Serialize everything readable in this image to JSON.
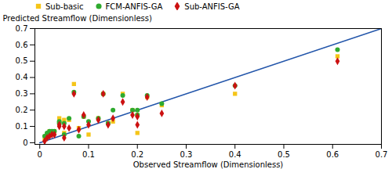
{
  "chart_data": {
    "type": "scatter",
    "xlabel": "Observed Streamflow (Dimensionless)",
    "ylabel": "Predicted Streamflow (Dimensionless)",
    "xlim": [
      -0.01,
      0.7
    ],
    "ylim": [
      -0.01,
      0.7
    ],
    "xticks": [
      0,
      0.1,
      0.2,
      0.3,
      0.4,
      0.5,
      0.6,
      0.7
    ],
    "yticks": [
      0,
      0.1,
      0.2,
      0.3,
      0.4,
      0.5,
      0.6,
      0.7
    ],
    "legend": "upper left",
    "series": [
      {
        "type": "line",
        "color": "#2255aa",
        "x": [
          0.0,
          0.7
        ],
        "values": [
          0.0,
          0.7
        ]
      },
      {
        "name": "Sub-basic",
        "type": "scatter",
        "marker": "square",
        "color": "#f5c518",
        "x": [
          0.01,
          0.015,
          0.02,
          0.025,
          0.03,
          0.04,
          0.04,
          0.05,
          0.05,
          0.06,
          0.07,
          0.08,
          0.09,
          0.1,
          0.12,
          0.13,
          0.14,
          0.15,
          0.17,
          0.19,
          0.2,
          0.2,
          0.22,
          0.25,
          0.4,
          0.61
        ],
        "values": [
          0.02,
          0.05,
          0.07,
          0.07,
          0.07,
          0.13,
          0.15,
          0.14,
          0.06,
          0.14,
          0.36,
          0.09,
          0.16,
          0.05,
          0.15,
          0.3,
          0.12,
          0.13,
          0.3,
          0.2,
          0.17,
          0.06,
          0.28,
          0.23,
          0.3,
          0.53
        ]
      },
      {
        "name": "FCM-ANFIS-GA",
        "type": "scatter",
        "marker": "circle",
        "color": "#2eaa2e",
        "x": [
          0.01,
          0.015,
          0.02,
          0.025,
          0.03,
          0.04,
          0.04,
          0.05,
          0.05,
          0.06,
          0.07,
          0.08,
          0.09,
          0.1,
          0.12,
          0.13,
          0.14,
          0.15,
          0.17,
          0.19,
          0.2,
          0.2,
          0.22,
          0.25,
          0.4,
          0.61
        ],
        "values": [
          0.04,
          0.06,
          0.07,
          0.07,
          0.07,
          0.12,
          0.13,
          0.12,
          0.05,
          0.15,
          0.31,
          0.04,
          0.16,
          0.13,
          0.15,
          0.3,
          0.12,
          0.2,
          0.29,
          0.2,
          0.17,
          0.2,
          0.29,
          0.24,
          0.35,
          0.57
        ]
      },
      {
        "name": "Sub-ANFIS-GA",
        "type": "scatter",
        "marker": "diamond",
        "color": "#cc1111",
        "x": [
          0.01,
          0.015,
          0.02,
          0.025,
          0.03,
          0.04,
          0.04,
          0.05,
          0.05,
          0.06,
          0.07,
          0.08,
          0.09,
          0.1,
          0.12,
          0.13,
          0.14,
          0.15,
          0.17,
          0.19,
          0.2,
          0.2,
          0.22,
          0.25,
          0.4,
          0.61
        ],
        "values": [
          0.01,
          0.03,
          0.04,
          0.05,
          0.05,
          0.1,
          0.11,
          0.1,
          0.03,
          0.09,
          0.3,
          0.08,
          0.17,
          0.11,
          0.14,
          0.3,
          0.11,
          0.15,
          0.25,
          0.17,
          0.11,
          0.16,
          0.28,
          0.18,
          0.35,
          0.5
        ]
      }
    ]
  }
}
